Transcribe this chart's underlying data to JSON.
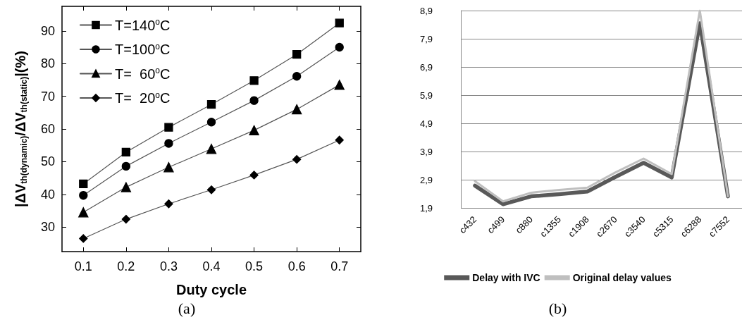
{
  "chart_data": [
    {
      "type": "line",
      "xlabel": "Duty cycle",
      "ylabel": "|ΔV$_{th(dynamic)}$/ΔV$_{th(static)}$|(%)",
      "x": [
        0.1,
        0.2,
        0.3,
        0.4,
        0.5,
        0.6,
        0.7
      ],
      "series": [
        {
          "name": "T=140$^{o}$C",
          "color": "#000000",
          "marker": "square",
          "values": [
            43.2,
            52.9,
            60.5,
            67.5,
            74.8,
            82.8,
            92.4
          ]
        },
        {
          "name": "T=100$^{o}$C",
          "color": "#000000",
          "marker": "circle",
          "values": [
            39.7,
            48.6,
            55.6,
            62.1,
            68.7,
            76.1,
            85.0
          ]
        },
        {
          "name": "T=  60$^{o}$C",
          "color": "#000000",
          "marker": "triangle",
          "values": [
            34.5,
            42.2,
            48.3,
            53.9,
            59.6,
            66.0,
            73.5
          ]
        },
        {
          "name": "T=  20$^{o}$C",
          "color": "#000000",
          "marker": "diamond",
          "values": [
            26.5,
            32.4,
            37.1,
            41.4,
            45.9,
            50.7,
            56.6
          ]
        }
      ],
      "xlim": [
        0.05,
        0.75
      ],
      "xticks": [
        0.1,
        0.2,
        0.3,
        0.4,
        0.5,
        0.6,
        0.7
      ],
      "ylim": [
        22.5,
        97.5
      ],
      "yticks": [
        30,
        40,
        50,
        60,
        70,
        80,
        90
      ],
      "grid": false,
      "legend": "top left",
      "line_style": "solid",
      "annotations": [
        "(a)"
      ]
    },
    {
      "type": "line",
      "categories": [
        "c432",
        "c499",
        "c880",
        "c1355",
        "c1908",
        "c2670",
        "c3540",
        "c5315",
        "c6288",
        "c7552"
      ],
      "series": [
        {
          "name": "Delay with IVC",
          "color": "#595959",
          "values": [
            2.69,
            2.03,
            2.31,
            2.39,
            2.48,
            3.0,
            3.5,
            2.98,
            8.45,
            2.31
          ]
        },
        {
          "name": "Original delay values",
          "color": "#bfbfbf",
          "values": [
            2.85,
            2.13,
            2.44,
            2.54,
            2.62,
            3.16,
            3.65,
            3.1,
            8.9,
            2.31
          ]
        }
      ],
      "ylim": [
        1.9,
        8.9
      ],
      "yticks": [
        {
          "value": 1.9,
          "label": "1,9"
        },
        {
          "value": 2.9,
          "label": "2,9"
        },
        {
          "value": 3.9,
          "label": "3,9"
        },
        {
          "value": 4.9,
          "label": "4,9"
        },
        {
          "value": 5.9,
          "label": "5,9"
        },
        {
          "value": 6.9,
          "label": "6,9"
        },
        {
          "value": 7.9,
          "label": "7,9"
        },
        {
          "value": 8.9,
          "label": "8,9"
        }
      ],
      "grid": "y",
      "legend": "bottom",
      "marker": "none",
      "line_style": "solid",
      "annotations": [
        "(b)"
      ]
    }
  ]
}
